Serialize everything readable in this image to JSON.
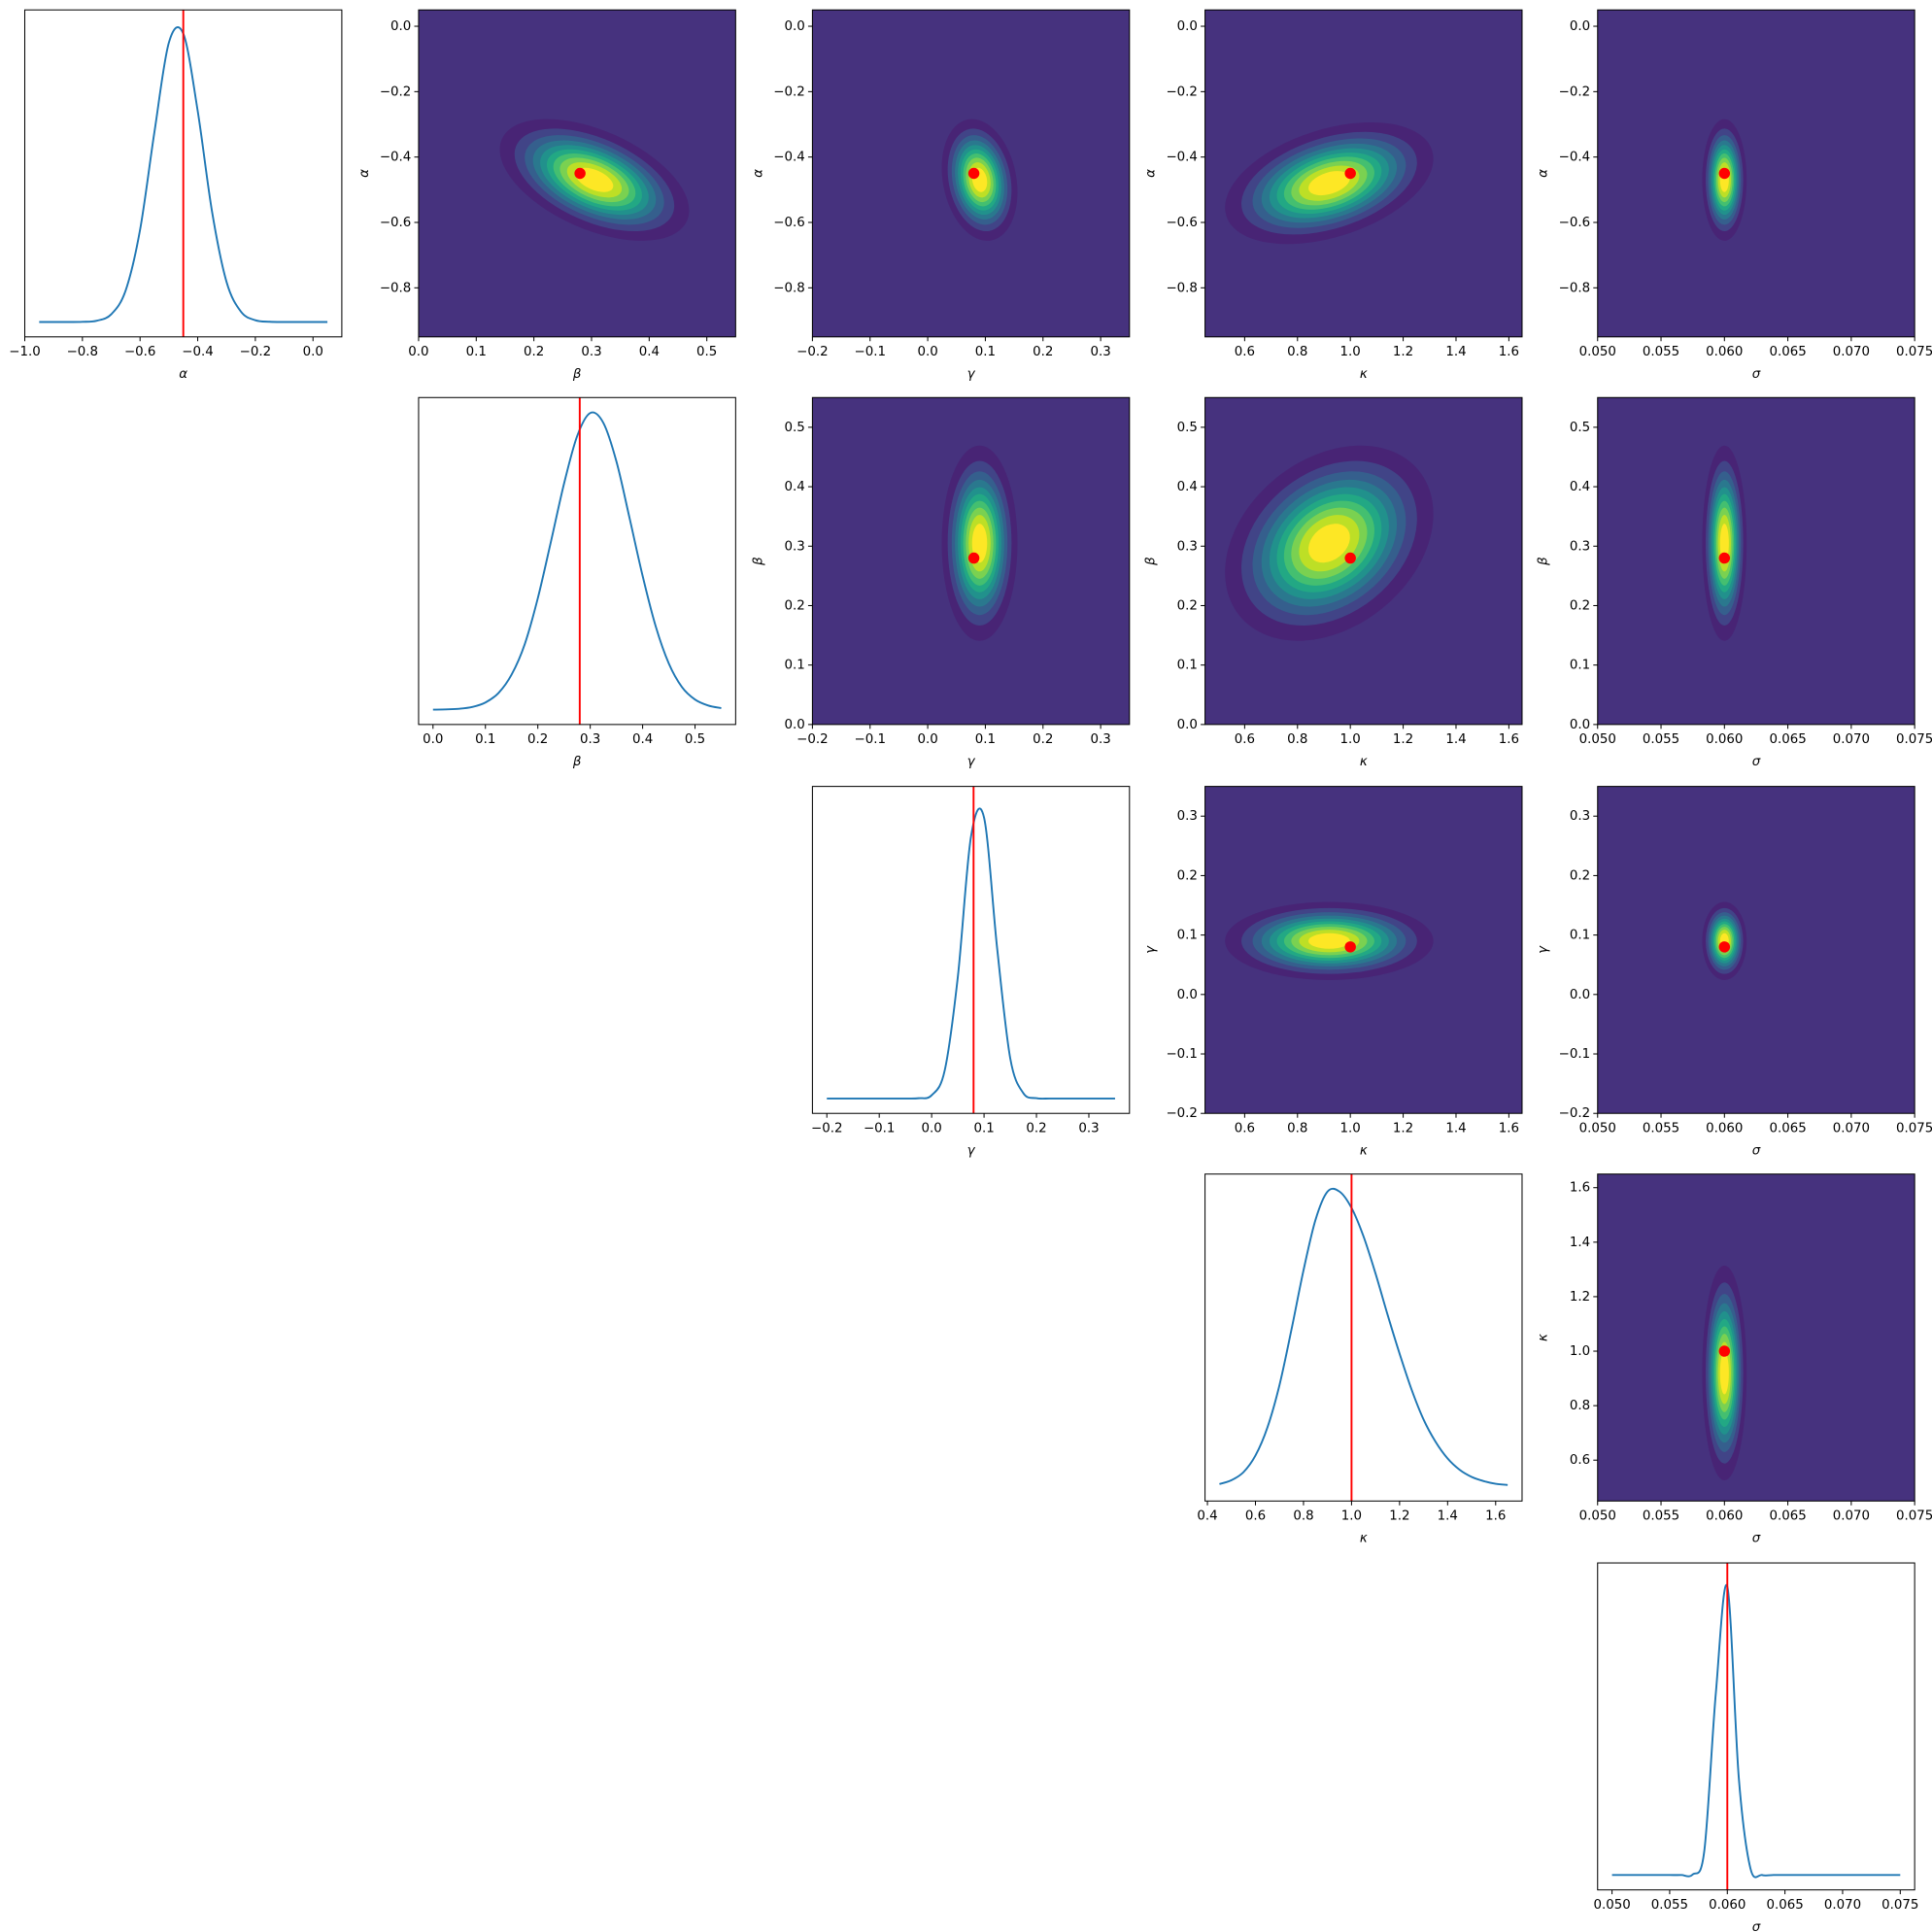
{
  "chart_data": [
    {
      "type": "line",
      "xlabel": "α",
      "x": [
        -0.95,
        -0.9,
        -0.85,
        -0.8,
        -0.75,
        -0.7,
        -0.65,
        -0.6,
        -0.55,
        -0.5,
        -0.45,
        -0.4,
        -0.35,
        -0.3,
        -0.25,
        -0.2,
        -0.15,
        -0.1,
        -0.05,
        0,
        0.05
      ],
      "values": [
        0,
        0,
        0,
        0.0005,
        0.0044,
        0.026,
        0.106,
        0.31,
        0.64,
        0.94,
        0.97,
        0.71,
        0.37,
        0.135,
        0.035,
        0.006,
        0.0008,
        0,
        0,
        0,
        0
      ],
      "color": "#1f77b4",
      "truth": -0.45,
      "truth_color": "#ff0000",
      "xlim": [
        -1.0,
        0.1
      ],
      "ylim": [
        -0.05,
        1.05
      ],
      "xticks": [
        {
          "value": -1,
          "label": "−1.0"
        },
        {
          "value": -0.8,
          "label": "−0.8"
        },
        {
          "value": -0.6,
          "label": "−0.6"
        },
        {
          "value": -0.4,
          "label": "−0.4"
        },
        {
          "value": -0.2,
          "label": "−0.2"
        },
        {
          "value": 0,
          "label": "0.0"
        }
      ]
    },
    {
      "type": "contour",
      "xlabel": "β",
      "ylabel": "α",
      "xlim": [
        0,
        0.55
      ],
      "ylim": [
        -0.95,
        0.05
      ],
      "xticks": [
        {
          "value": 0,
          "label": "0.0"
        },
        0.1,
        0.2,
        0.3,
        0.4,
        0.5
      ],
      "yticks": [
        {
          "value": -0.8,
          "label": "−0.8"
        },
        {
          "value": -0.6,
          "label": "−0.6"
        },
        {
          "value": -0.4,
          "label": "−0.4"
        },
        {
          "value": -0.2,
          "label": "−0.2"
        },
        {
          "value": 0,
          "label": "0.0"
        }
      ],
      "peak": [
        0.305,
        -0.47
      ],
      "spread": [
        0.075,
        0.085
      ],
      "rho": -0.5,
      "colormap": "viridis",
      "point": [
        0.28,
        -0.45
      ],
      "point_color": "#ff0000"
    },
    {
      "type": "contour",
      "xlabel": "γ",
      "ylabel": "α",
      "xlim": [
        -0.2,
        0.35
      ],
      "ylim": [
        -0.95,
        0.05
      ],
      "xticks": [
        {
          "value": -0.2,
          "label": "−0.2"
        },
        {
          "value": -0.1,
          "label": "−0.1"
        },
        {
          "value": 0,
          "label": "0.0"
        },
        0.1,
        0.2,
        0.3
      ],
      "yticks": [
        {
          "value": -0.8,
          "label": "−0.8"
        },
        {
          "value": -0.6,
          "label": "−0.6"
        },
        {
          "value": -0.4,
          "label": "−0.4"
        },
        {
          "value": -0.2,
          "label": "−0.2"
        },
        {
          "value": 0,
          "label": "0.0"
        }
      ],
      "peak": [
        0.09,
        -0.47
      ],
      "spread": [
        0.03,
        0.085
      ],
      "rho": -0.2,
      "colormap": "viridis",
      "point": [
        0.08,
        -0.45
      ],
      "point_color": "#ff0000"
    },
    {
      "type": "contour",
      "xlabel": "κ",
      "ylabel": "α",
      "xlim": [
        0.45,
        1.65
      ],
      "ylim": [
        -0.95,
        0.05
      ],
      "xticks": [
        0.6,
        0.8,
        {
          "value": 1,
          "label": "1.0"
        },
        1.2,
        1.4,
        1.6
      ],
      "yticks": [
        {
          "value": -0.8,
          "label": "−0.8"
        },
        {
          "value": -0.6,
          "label": "−0.6"
        },
        {
          "value": -0.4,
          "label": "−0.4"
        },
        {
          "value": -0.2,
          "label": "−0.2"
        },
        {
          "value": 0,
          "label": "0.0"
        }
      ],
      "peak": [
        0.92,
        -0.48
      ],
      "spread": [
        0.18,
        0.085
      ],
      "rho": 0.4,
      "colormap": "viridis",
      "point": [
        1,
        -0.45
      ],
      "point_color": "#ff0000"
    },
    {
      "type": "contour",
      "xlabel": "σ",
      "ylabel": "α",
      "xlim": [
        0.05,
        0.075
      ],
      "ylim": [
        -0.95,
        0.05
      ],
      "xticks": [
        {
          "value": 0.05,
          "label": "0.050"
        },
        {
          "value": 0.055,
          "label": "0.055"
        },
        {
          "value": 0.06,
          "label": "0.060"
        },
        {
          "value": 0.065,
          "label": "0.065"
        },
        {
          "value": 0.07,
          "label": "0.070"
        },
        {
          "value": 0.075,
          "label": "0.075"
        }
      ],
      "yticks": [
        {
          "value": -0.8,
          "label": "−0.8"
        },
        {
          "value": -0.6,
          "label": "−0.6"
        },
        {
          "value": -0.4,
          "label": "−0.4"
        },
        {
          "value": -0.2,
          "label": "−0.2"
        },
        {
          "value": 0,
          "label": "0.0"
        }
      ],
      "peak": [
        0.06,
        -0.47
      ],
      "spread": [
        0.0008,
        0.085
      ],
      "rho": 0,
      "colormap": "viridis",
      "point": [
        0.06,
        -0.45
      ],
      "point_color": "#ff0000"
    },
    {
      "type": "line",
      "xlabel": "β",
      "x": [
        0,
        0.025,
        0.05,
        0.075,
        0.1,
        0.125,
        0.15,
        0.175,
        0.2,
        0.225,
        0.25,
        0.275,
        0.3,
        0.325,
        0.35,
        0.375,
        0.4,
        0.425,
        0.45,
        0.475,
        0.5,
        0.525,
        0.55
      ],
      "values": [
        0,
        0.001,
        0.003,
        0.009,
        0.024,
        0.056,
        0.118,
        0.22,
        0.375,
        0.565,
        0.76,
        0.92,
        0.998,
        0.965,
        0.835,
        0.645,
        0.45,
        0.28,
        0.155,
        0.076,
        0.034,
        0.014,
        0.005
      ],
      "color": "#1f77b4",
      "truth": 0.28,
      "truth_color": "#ff0000",
      "xlim": [
        -0.0275,
        0.5775
      ],
      "ylim": [
        -0.05,
        1.05
      ],
      "xticks": [
        {
          "value": 0,
          "label": "0.0"
        },
        0.1,
        0.2,
        0.3,
        0.4,
        0.5
      ]
    },
    {
      "type": "contour",
      "xlabel": "γ",
      "ylabel": "β",
      "xlim": [
        -0.2,
        0.35
      ],
      "ylim": [
        0,
        0.55
      ],
      "xticks": [
        {
          "value": -0.2,
          "label": "−0.2"
        },
        {
          "value": -0.1,
          "label": "−0.1"
        },
        {
          "value": 0,
          "label": "0.0"
        },
        0.1,
        0.2,
        0.3
      ],
      "yticks": [
        {
          "value": 0,
          "label": "0.0"
        },
        0.1,
        0.2,
        0.3,
        0.4,
        0.5
      ],
      "peak": [
        0.09,
        0.305
      ],
      "spread": [
        0.03,
        0.075
      ],
      "rho": 0,
      "colormap": "viridis",
      "point": [
        0.08,
        0.28
      ],
      "point_color": "#ff0000"
    },
    {
      "type": "contour",
      "xlabel": "κ",
      "ylabel": "β",
      "xlim": [
        0.45,
        1.65
      ],
      "ylim": [
        0,
        0.55
      ],
      "xticks": [
        0.6,
        0.8,
        {
          "value": 1,
          "label": "1.0"
        },
        1.2,
        1.4,
        1.6
      ],
      "yticks": [
        {
          "value": 0,
          "label": "0.0"
        },
        0.1,
        0.2,
        0.3,
        0.4,
        0.5
      ],
      "peak": [
        0.92,
        0.305
      ],
      "spread": [
        0.18,
        0.075
      ],
      "rho": 0.3,
      "colormap": "viridis",
      "point": [
        1,
        0.28
      ],
      "point_color": "#ff0000"
    },
    {
      "type": "contour",
      "xlabel": "σ",
      "ylabel": "β",
      "xlim": [
        0.05,
        0.075
      ],
      "ylim": [
        0,
        0.55
      ],
      "xticks": [
        {
          "value": 0.05,
          "label": "0.050"
        },
        {
          "value": 0.055,
          "label": "0.055"
        },
        {
          "value": 0.06,
          "label": "0.060"
        },
        {
          "value": 0.065,
          "label": "0.065"
        },
        {
          "value": 0.07,
          "label": "0.070"
        },
        {
          "value": 0.075,
          "label": "0.075"
        }
      ],
      "yticks": [
        {
          "value": 0,
          "label": "0.0"
        },
        0.1,
        0.2,
        0.3,
        0.4,
        0.5
      ],
      "peak": [
        0.06,
        0.305
      ],
      "spread": [
        0.0008,
        0.075
      ],
      "rho": 0,
      "colormap": "viridis",
      "point": [
        0.06,
        0.28
      ],
      "point_color": "#ff0000"
    },
    {
      "type": "line",
      "xlabel": "γ",
      "x": [
        -0.2,
        -0.175,
        -0.15,
        -0.125,
        -0.1,
        -0.075,
        -0.05,
        -0.025,
        0,
        0.025,
        0.05,
        0.075,
        0.1,
        0.125,
        0.15,
        0.175,
        0.2,
        0.225,
        0.25,
        0.275,
        0.3,
        0.325,
        0.35
      ],
      "values": [
        0,
        0,
        0,
        0,
        0,
        0,
        0,
        0.001,
        0.011,
        0.095,
        0.41,
        0.88,
        0.945,
        0.505,
        0.135,
        0.018,
        0.001,
        0,
        0,
        0,
        0,
        0,
        0
      ],
      "color": "#1f77b4",
      "truth": 0.08,
      "truth_color": "#ff0000",
      "xlim": [
        -0.2275,
        0.3775
      ],
      "ylim": [
        -0.05,
        1.05
      ],
      "xticks": [
        {
          "value": -0.2,
          "label": "−0.2"
        },
        {
          "value": -0.1,
          "label": "−0.1"
        },
        {
          "value": 0,
          "label": "0.0"
        },
        0.1,
        0.2,
        0.3
      ]
    },
    {
      "type": "contour",
      "xlabel": "κ",
      "ylabel": "γ",
      "xlim": [
        0.45,
        1.65
      ],
      "ylim": [
        -0.2,
        0.35
      ],
      "xticks": [
        0.6,
        0.8,
        {
          "value": 1,
          "label": "1.0"
        },
        1.2,
        1.4,
        1.6
      ],
      "yticks": [
        {
          "value": -0.2,
          "label": "−0.2"
        },
        {
          "value": -0.1,
          "label": "−0.1"
        },
        {
          "value": 0,
          "label": "0.0"
        },
        0.1,
        0.2,
        0.3
      ],
      "peak": [
        0.92,
        0.09
      ],
      "spread": [
        0.18,
        0.03
      ],
      "rho": 0,
      "colormap": "viridis",
      "point": [
        1,
        0.08
      ],
      "point_color": "#ff0000"
    },
    {
      "type": "contour",
      "xlabel": "σ",
      "ylabel": "γ",
      "xlim": [
        0.05,
        0.075
      ],
      "ylim": [
        -0.2,
        0.35
      ],
      "xticks": [
        {
          "value": 0.05,
          "label": "0.050"
        },
        {
          "value": 0.055,
          "label": "0.055"
        },
        {
          "value": 0.06,
          "label": "0.060"
        },
        {
          "value": 0.065,
          "label": "0.065"
        },
        {
          "value": 0.07,
          "label": "0.070"
        },
        {
          "value": 0.075,
          "label": "0.075"
        }
      ],
      "yticks": [
        {
          "value": -0.2,
          "label": "−0.2"
        },
        {
          "value": -0.1,
          "label": "−0.1"
        },
        {
          "value": 0,
          "label": "0.0"
        },
        0.1,
        0.2,
        0.3
      ],
      "peak": [
        0.06,
        0.09
      ],
      "spread": [
        0.0008,
        0.03
      ],
      "rho": 0,
      "colormap": "viridis",
      "point": [
        0.06,
        0.08
      ],
      "point_color": "#ff0000"
    },
    {
      "type": "line",
      "xlabel": "κ",
      "x": [
        0.45,
        0.5,
        0.55,
        0.6,
        0.65,
        0.7,
        0.75,
        0.8,
        0.85,
        0.9,
        0.95,
        1,
        1.05,
        1.1,
        1.15,
        1.2,
        1.25,
        1.3,
        1.35,
        1.4,
        1.45,
        1.5,
        1.55,
        1.6,
        1.65
      ],
      "values": [
        0.007,
        0.02,
        0.047,
        0.103,
        0.198,
        0.34,
        0.527,
        0.726,
        0.896,
        0.991,
        0.991,
        0.936,
        0.84,
        0.715,
        0.577,
        0.446,
        0.325,
        0.224,
        0.149,
        0.093,
        0.055,
        0.031,
        0.017,
        0.008,
        0.004
      ],
      "color": "#1f77b4",
      "truth": 1,
      "truth_color": "#ff0000",
      "xlim": [
        0.39,
        1.71
      ],
      "ylim": [
        -0.05,
        1.05
      ],
      "xticks": [
        0.4,
        0.6,
        0.8,
        {
          "value": 1,
          "label": "1.0"
        },
        1.2,
        1.4,
        1.6
      ]
    },
    {
      "type": "contour",
      "xlabel": "σ",
      "ylabel": "κ",
      "xlim": [
        0.05,
        0.075
      ],
      "ylim": [
        0.45,
        1.65
      ],
      "xticks": [
        {
          "value": 0.05,
          "label": "0.050"
        },
        {
          "value": 0.055,
          "label": "0.055"
        },
        {
          "value": 0.06,
          "label": "0.060"
        },
        {
          "value": 0.065,
          "label": "0.065"
        },
        {
          "value": 0.07,
          "label": "0.070"
        },
        {
          "value": 0.075,
          "label": "0.075"
        }
      ],
      "yticks": [
        0.6,
        0.8,
        {
          "value": 1,
          "label": "1.0"
        },
        1.2,
        1.4,
        1.6
      ],
      "peak": [
        0.06,
        0.92
      ],
      "spread": [
        0.0008,
        0.18
      ],
      "rho": 0,
      "colormap": "viridis",
      "point": [
        0.06,
        1
      ],
      "point_color": "#ff0000"
    },
    {
      "type": "line",
      "xlabel": "σ",
      "x": [
        0.05,
        0.051,
        0.052,
        0.053,
        0.054,
        0.055,
        0.056,
        0.057,
        0.058,
        0.059,
        0.06,
        0.061,
        0.062,
        0.063,
        0.064,
        0.065,
        0.066,
        0.067,
        0.068,
        0.069,
        0.07,
        0.071,
        0.072,
        0.073,
        0.074,
        0.075
      ],
      "values": [
        0,
        0,
        0,
        0,
        0,
        0,
        0,
        0.002,
        0.08,
        0.61,
        0.97,
        0.325,
        0.023,
        0,
        0,
        0,
        0,
        0,
        0,
        0,
        0,
        0,
        0,
        0,
        0,
        0
      ],
      "color": "#1f77b4",
      "truth": 0.06,
      "truth_color": "#ff0000",
      "xlim": [
        0.04875,
        0.07625
      ],
      "ylim": [
        -0.05,
        1.05
      ],
      "xticks": [
        {
          "value": 0.05,
          "label": "0.050"
        },
        {
          "value": 0.055,
          "label": "0.055"
        },
        {
          "value": 0.06,
          "label": "0.060"
        },
        {
          "value": 0.065,
          "label": "0.065"
        },
        {
          "value": 0.07,
          "label": "0.070"
        },
        {
          "value": 0.075,
          "label": "0.075"
        }
      ]
    }
  ]
}
